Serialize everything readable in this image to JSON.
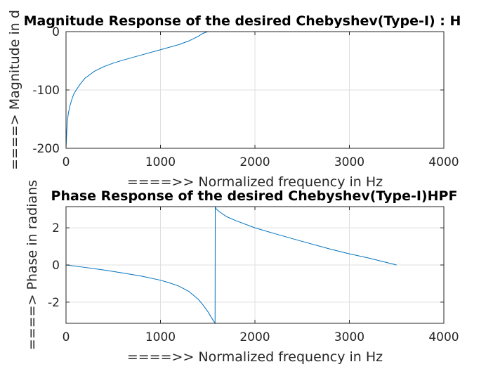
{
  "chart_data": [
    {
      "type": "line",
      "title": "Magnitude Response of the desired Chebyshev(Type-I) : H",
      "xlabel": "====>> Normalized frequency in Hz",
      "ylabel": "====> Magnitude in d",
      "xlim": [
        0,
        4000
      ],
      "ylim": [
        -200,
        0
      ],
      "xticks": [
        0,
        1000,
        2000,
        3000,
        4000
      ],
      "yticks": [
        -200,
        -100,
        0
      ],
      "grid": true,
      "line_color": "#0072BD",
      "series": [
        {
          "x": [
            0,
            3,
            8,
            15,
            25,
            40,
            60,
            80,
            100,
            150,
            200,
            300,
            400,
            500,
            600,
            800,
            1000,
            1200,
            1300,
            1400,
            1450,
            1500,
            1600,
            2000,
            2500,
            3000,
            3500
          ],
          "values": [
            -200,
            -190,
            -170,
            -152,
            -140,
            -128,
            -117,
            -108,
            -102,
            -90,
            -80,
            -68,
            -60,
            -54,
            -49,
            -40,
            -31,
            -22,
            -16,
            -8,
            -3,
            0,
            0,
            0,
            0,
            0,
            0
          ]
        }
      ]
    },
    {
      "type": "line",
      "title": "Phase Response of the desired Chebyshev(Type-I)HPF",
      "xlabel": "====>> Normalized frequency in Hz",
      "ylabel": "====> Phase in radians",
      "xlim": [
        0,
        4000
      ],
      "ylim": [
        -3.14,
        3.14
      ],
      "xticks": [
        0,
        1000,
        2000,
        3000,
        4000
      ],
      "yticks": [
        -2,
        0,
        2
      ],
      "grid": true,
      "line_color": "#0072BD",
      "series": [
        {
          "x": [
            0,
            200,
            400,
            600,
            800,
            1000,
            1100,
            1200,
            1300,
            1400,
            1450,
            1500,
            1530,
            1560,
            1578,
            1580,
            1590,
            1620,
            1700,
            1800,
            2000,
            2200,
            2500,
            2800,
            3000,
            3200,
            3500
          ],
          "values": [
            0,
            -0.13,
            -0.27,
            -0.43,
            -0.6,
            -0.82,
            -0.97,
            -1.15,
            -1.42,
            -1.85,
            -2.15,
            -2.5,
            -2.75,
            -3.0,
            -3.13,
            3.13,
            3.02,
            2.88,
            2.6,
            2.38,
            2.0,
            1.7,
            1.27,
            0.85,
            0.6,
            0.38,
            0.0
          ]
        }
      ]
    }
  ]
}
